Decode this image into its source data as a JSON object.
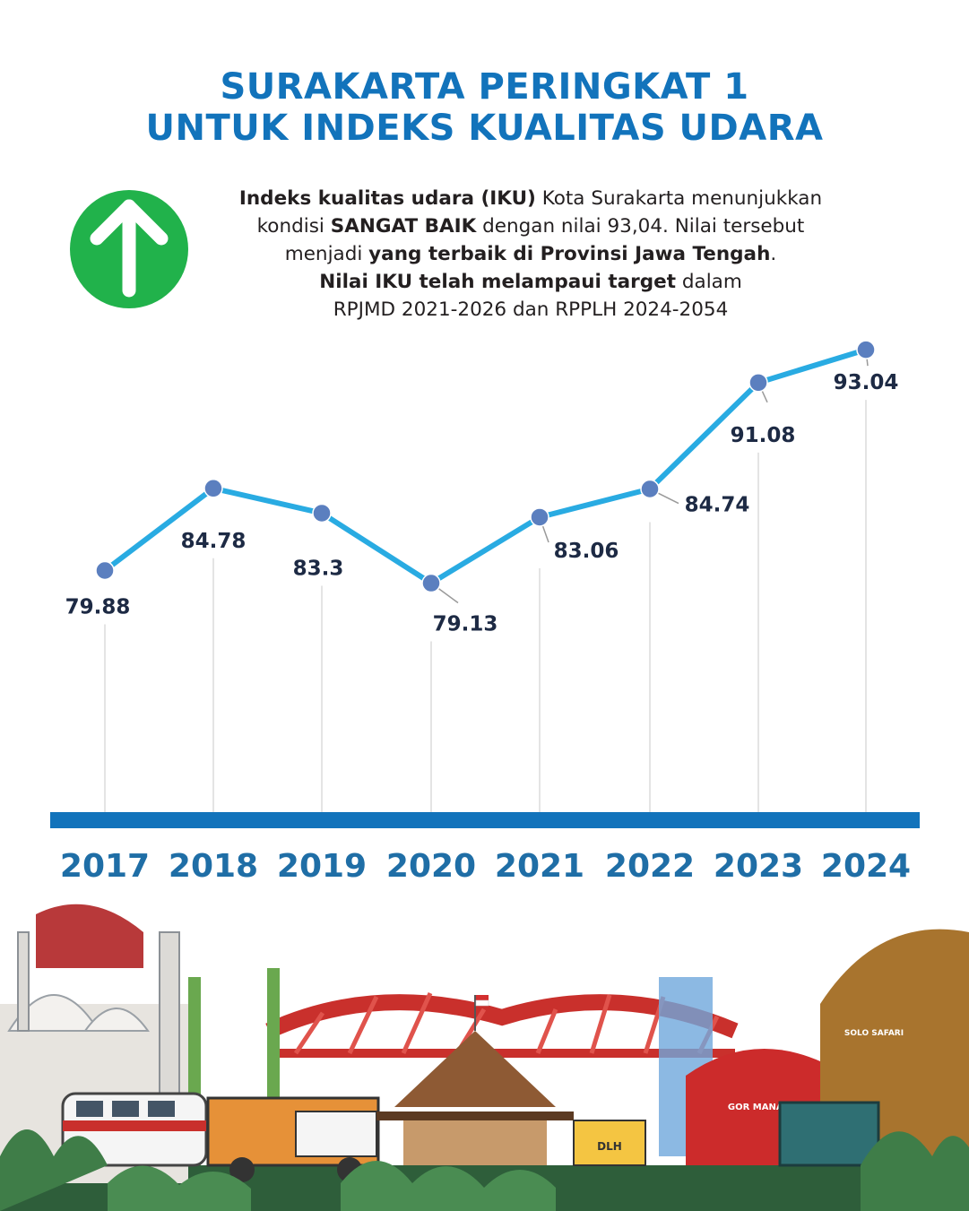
{
  "title": {
    "line1": "SURAKARTA PERINGKAT 1",
    "line2": "UNTUK INDEKS KUALITAS UDARA"
  },
  "description": {
    "l1_bold": "Indeks kualitas udara (IKU)",
    "l1_rest": " Kota Surakarta menunjukkan",
    "l2_a": "kondisi ",
    "l2_bold": "SANGAT BAIK",
    "l2_rest": " dengan nilai 93,04. Nilai tersebut",
    "l3_a": "menjadi ",
    "l3_bold": "yang terbaik di Provinsi Jawa Tengah",
    "l3_rest": ".",
    "l4_bold": "Nilai IKU telah melampaui target",
    "l4_rest": " dalam",
    "l5": "RPJMD 2021-2026 dan RPPLH 2024-2054"
  },
  "colors": {
    "title": "#1273bb",
    "line": "#29abe2",
    "marker": "#5b7fbf",
    "baseline": "#1273bb",
    "year_label": "#1f6ea6",
    "value_label": "#1d2a44",
    "arrow_badge": "#21b24b"
  },
  "icons": {
    "up_arrow": "up-arrow-icon"
  },
  "chart_data": {
    "type": "line",
    "x": [
      "2017",
      "2018",
      "2019",
      "2020",
      "2021",
      "2022",
      "2023",
      "2024"
    ],
    "series": [
      {
        "values": [
          79.88,
          84.78,
          83.3,
          79.13,
          83.06,
          84.74,
          91.08,
          93.04
        ]
      }
    ],
    "data_labels": [
      "79.88",
      "84.78",
      "83.3",
      "79.13",
      "83.06",
      "84.74",
      "91.08",
      "93.04"
    ],
    "grid": false,
    "legend": "none"
  },
  "decoration": {
    "skyline_sign_1": "GOR MANAHAN",
    "skyline_sign_2": "DLH",
    "skyline_sign_3": "SOLO SAFARI"
  }
}
